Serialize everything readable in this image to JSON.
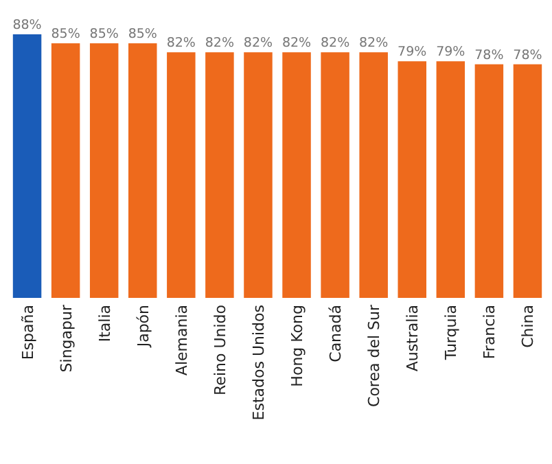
{
  "chart_data": {
    "type": "bar",
    "categories": [
      "España",
      "Singapur",
      "Italia",
      "Japón",
      "Alemania",
      "Reino Unido",
      "Estados Unidos",
      "Hong Kong",
      "Canadá",
      "Corea del Sur",
      "Australia",
      "Turquia",
      "Francia",
      "China"
    ],
    "values": [
      88,
      85,
      85,
      85,
      82,
      82,
      82,
      82,
      82,
      82,
      79,
      79,
      78,
      78
    ],
    "colors": [
      "#1a5cb8",
      "#ee6a1c",
      "#ee6a1c",
      "#ee6a1c",
      "#ee6a1c",
      "#ee6a1c",
      "#ee6a1c",
      "#ee6a1c",
      "#ee6a1c",
      "#ee6a1c",
      "#ee6a1c",
      "#ee6a1c",
      "#ee6a1c",
      "#ee6a1c"
    ],
    "value_labels": [
      "88%",
      "85%",
      "85%",
      "85%",
      "82%",
      "82%",
      "82%",
      "82%",
      "82%",
      "82%",
      "79%",
      "79%",
      "78%",
      "78%"
    ]
  }
}
